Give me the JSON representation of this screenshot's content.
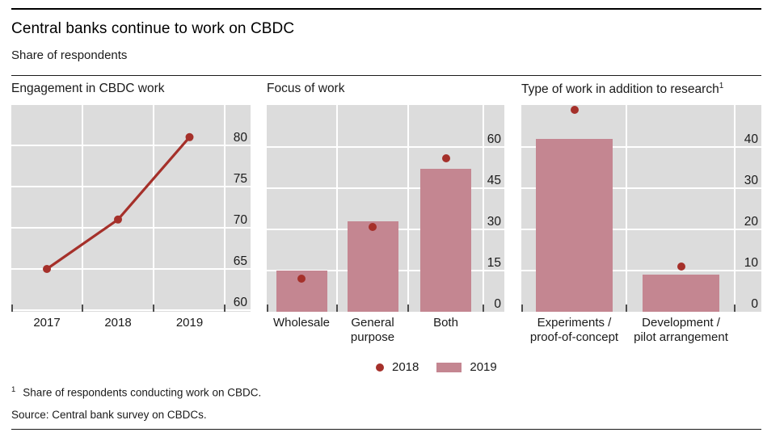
{
  "page": {
    "title": "Central banks continue to work on CBDC",
    "subtitle": "Share of respondents",
    "footnote_marker": "1",
    "footnote_text": "Share of respondents conducting work on CBDC.",
    "source": "Source: Central bank survey on CBDCs."
  },
  "legend": {
    "position": "bottom-center",
    "items": [
      {
        "label": "2018",
        "marker": "dot",
        "color": "#a5302a"
      },
      {
        "label": "2019",
        "marker": "bar",
        "color": "#c48691"
      }
    ]
  },
  "colors": {
    "series_2018_dot": "#a5302a",
    "series_2019_bar": "#c48691",
    "panel_background": "#dcdcdc",
    "gridline": "#ffffff",
    "axis_tick": "#4d4d4d",
    "text": "#1a1a1a"
  },
  "chart_data": [
    {
      "type": "line",
      "title": "Engagement in CBDC work",
      "x": [
        "2017",
        "2018",
        "2019"
      ],
      "series": [
        {
          "name": "Share of respondents engaged in CBDC work",
          "values": [
            65,
            71,
            81
          ]
        }
      ],
      "yticks": [
        60,
        65,
        70,
        75,
        80
      ],
      "ylim": [
        60,
        85
      ],
      "grid": true,
      "yaxis_side": "right"
    },
    {
      "type": "bar",
      "title": "Focus of work",
      "categories": [
        "Wholesale",
        "General\npurpose",
        "Both"
      ],
      "series": [
        {
          "name": "2018",
          "marker": "dot",
          "values": [
            12,
            31,
            56
          ]
        },
        {
          "name": "2019",
          "marker": "bar",
          "values": [
            15,
            33,
            52
          ]
        }
      ],
      "yticks": [
        0,
        15,
        30,
        45,
        60
      ],
      "ylim": [
        0,
        75
      ],
      "grid": true,
      "yaxis_side": "right"
    },
    {
      "type": "bar",
      "title": "Type of work in addition to research",
      "title_footnote_marker": "1",
      "categories": [
        "Experiments /\nproof-of-concept",
        "Development /\npilot arrangement"
      ],
      "series": [
        {
          "name": "2018",
          "marker": "dot",
          "values": [
            49,
            11
          ]
        },
        {
          "name": "2019",
          "marker": "bar",
          "values": [
            42,
            9
          ]
        }
      ],
      "yticks": [
        0,
        10,
        20,
        30,
        40
      ],
      "ylim": [
        0,
        50
      ],
      "grid": true,
      "yaxis_side": "right"
    }
  ]
}
